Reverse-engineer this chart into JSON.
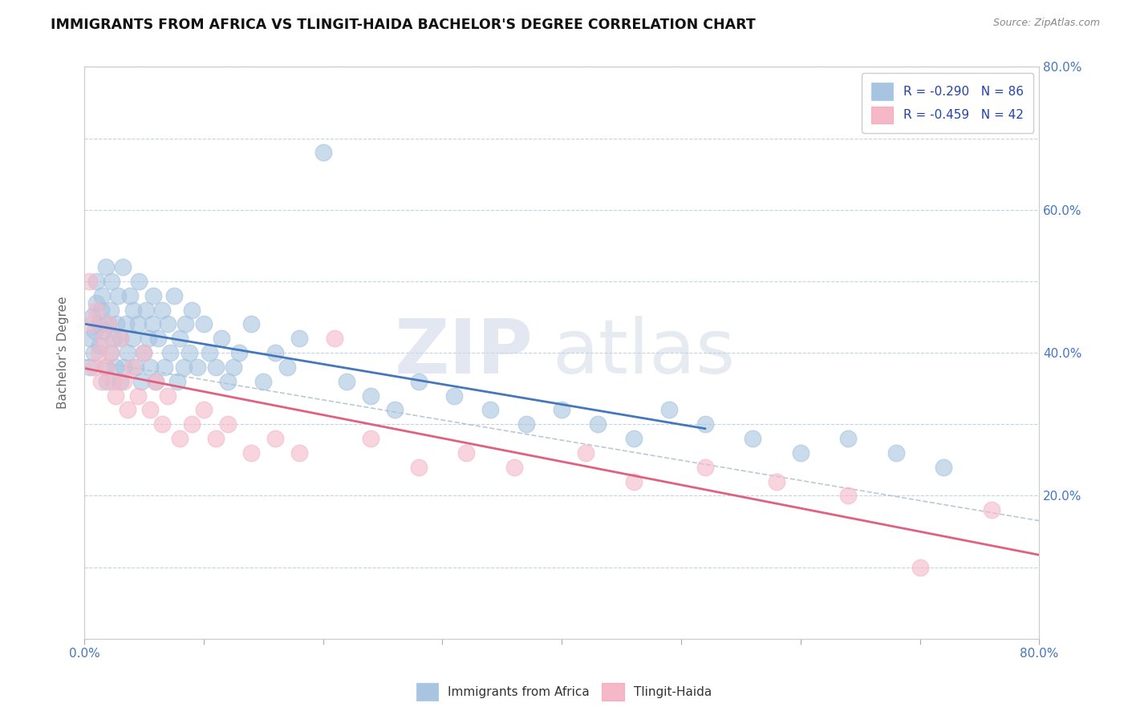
{
  "title": "IMMIGRANTS FROM AFRICA VS TLINGIT-HAIDA BACHELOR'S DEGREE CORRELATION CHART",
  "source_text": "Source: ZipAtlas.com",
  "ylabel": "Bachelor's Degree",
  "xlim": [
    0.0,
    0.8
  ],
  "ylim": [
    0.0,
    0.8
  ],
  "legend_r1": "R = -0.290",
  "legend_n1": "N = 86",
  "legend_r2": "R = -0.459",
  "legend_n2": "N = 42",
  "color_blue": "#a8c4e0",
  "color_pink": "#f4b8c8",
  "line_blue": "#4477bb",
  "line_pink": "#e06080",
  "watermark_zip": "ZIP",
  "watermark_atlas": "atlas",
  "blue_x": [
    0.005,
    0.005,
    0.007,
    0.008,
    0.009,
    0.01,
    0.01,
    0.012,
    0.013,
    0.014,
    0.015,
    0.016,
    0.018,
    0.018,
    0.019,
    0.02,
    0.022,
    0.022,
    0.023,
    0.025,
    0.026,
    0.027,
    0.028,
    0.03,
    0.03,
    0.032,
    0.033,
    0.035,
    0.036,
    0.038,
    0.04,
    0.041,
    0.043,
    0.045,
    0.046,
    0.048,
    0.05,
    0.052,
    0.054,
    0.055,
    0.057,
    0.058,
    0.06,
    0.062,
    0.065,
    0.067,
    0.07,
    0.072,
    0.075,
    0.078,
    0.08,
    0.083,
    0.085,
    0.088,
    0.09,
    0.095,
    0.1,
    0.105,
    0.11,
    0.115,
    0.12,
    0.125,
    0.13,
    0.14,
    0.15,
    0.16,
    0.17,
    0.18,
    0.2,
    0.22,
    0.24,
    0.26,
    0.28,
    0.31,
    0.34,
    0.37,
    0.4,
    0.43,
    0.46,
    0.49,
    0.52,
    0.56,
    0.6,
    0.64,
    0.68,
    0.72
  ],
  "blue_y": [
    0.42,
    0.38,
    0.45,
    0.4,
    0.43,
    0.47,
    0.5,
    0.44,
    0.41,
    0.46,
    0.48,
    0.43,
    0.52,
    0.38,
    0.36,
    0.44,
    0.46,
    0.4,
    0.5,
    0.42,
    0.38,
    0.44,
    0.48,
    0.42,
    0.36,
    0.52,
    0.38,
    0.44,
    0.4,
    0.48,
    0.42,
    0.46,
    0.38,
    0.44,
    0.5,
    0.36,
    0.4,
    0.46,
    0.42,
    0.38,
    0.44,
    0.48,
    0.36,
    0.42,
    0.46,
    0.38,
    0.44,
    0.4,
    0.48,
    0.36,
    0.42,
    0.38,
    0.44,
    0.4,
    0.46,
    0.38,
    0.44,
    0.4,
    0.38,
    0.42,
    0.36,
    0.38,
    0.4,
    0.44,
    0.36,
    0.4,
    0.38,
    0.42,
    0.68,
    0.36,
    0.34,
    0.32,
    0.36,
    0.34,
    0.32,
    0.3,
    0.32,
    0.3,
    0.28,
    0.32,
    0.3,
    0.28,
    0.26,
    0.28,
    0.26,
    0.24
  ],
  "pink_x": [
    0.004,
    0.006,
    0.008,
    0.01,
    0.012,
    0.014,
    0.016,
    0.018,
    0.02,
    0.022,
    0.024,
    0.026,
    0.03,
    0.033,
    0.036,
    0.04,
    0.045,
    0.05,
    0.055,
    0.06,
    0.065,
    0.07,
    0.08,
    0.09,
    0.1,
    0.11,
    0.12,
    0.14,
    0.16,
    0.18,
    0.21,
    0.24,
    0.28,
    0.32,
    0.36,
    0.42,
    0.46,
    0.52,
    0.58,
    0.64,
    0.7,
    0.76
  ],
  "pink_y": [
    0.5,
    0.44,
    0.38,
    0.46,
    0.4,
    0.36,
    0.42,
    0.38,
    0.44,
    0.4,
    0.36,
    0.34,
    0.42,
    0.36,
    0.32,
    0.38,
    0.34,
    0.4,
    0.32,
    0.36,
    0.3,
    0.34,
    0.28,
    0.3,
    0.32,
    0.28,
    0.3,
    0.26,
    0.28,
    0.26,
    0.42,
    0.28,
    0.24,
    0.26,
    0.24,
    0.26,
    0.22,
    0.24,
    0.22,
    0.2,
    0.1,
    0.18
  ]
}
